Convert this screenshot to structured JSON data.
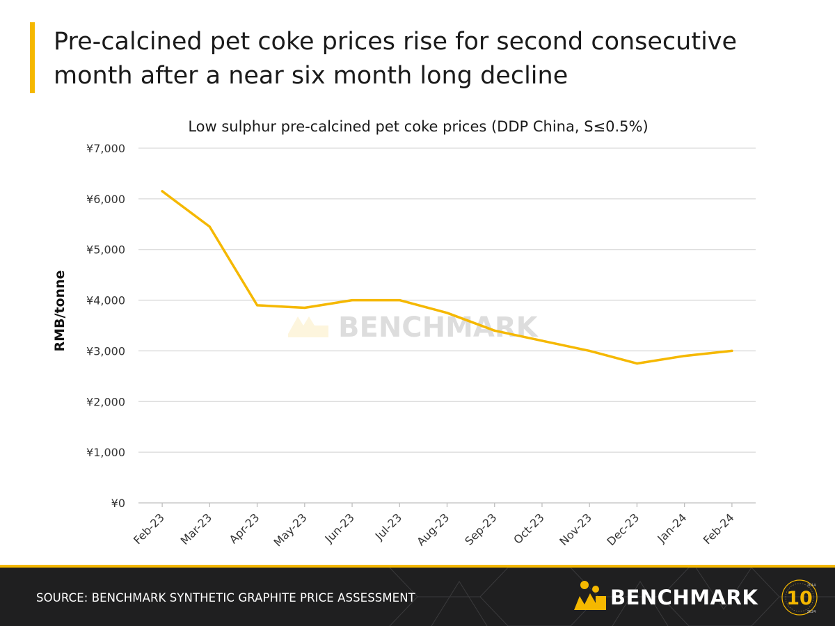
{
  "headline": "Pre-calcined pet coke prices rise for second consecutive month after a near six month long decline",
  "chart_data": {
    "type": "line",
    "title": "Low sulphur pre-calcined pet coke prices (DDP China, S≤0.5%)",
    "xlabel": "",
    "ylabel": "RMB/tonne",
    "categories": [
      "Feb-23",
      "Mar-23",
      "Apr-23",
      "May-23",
      "Jun-23",
      "Jul-23",
      "Aug-23",
      "Sep-23",
      "Oct-23",
      "Nov-23",
      "Dec-23",
      "Jan-24",
      "Feb-24"
    ],
    "series": [
      {
        "name": "",
        "values": [
          6150,
          5450,
          3900,
          3850,
          4000,
          4000,
          3750,
          3400,
          3200,
          3000,
          2750,
          2900,
          3000
        ],
        "color": "#f5b800"
      }
    ],
    "ylim": [
      0,
      7000
    ],
    "yticks": [
      0,
      1000,
      2000,
      3000,
      4000,
      5000,
      6000,
      7000
    ],
    "ytick_labels": [
      "¥0",
      "¥1,000",
      "¥2,000",
      "¥3,000",
      "¥4,000",
      "¥5,000",
      "¥6,000",
      "¥7,000"
    ],
    "grid": true,
    "legend": "none",
    "watermark": "BENCHMARK"
  },
  "footer": {
    "source": "SOURCE: BENCHMARK SYNTHETIC GRAPHITE PRICE ASSESSMENT",
    "brand": "BENCHMARK",
    "anniversary_number": "10",
    "anniversary_start": "2014",
    "anniversary_end": "2024"
  },
  "colors": {
    "accent": "#f5b800",
    "footer_bg": "#1f1f20",
    "grid": "#d9d9d9",
    "text": "#1a1a1a"
  }
}
